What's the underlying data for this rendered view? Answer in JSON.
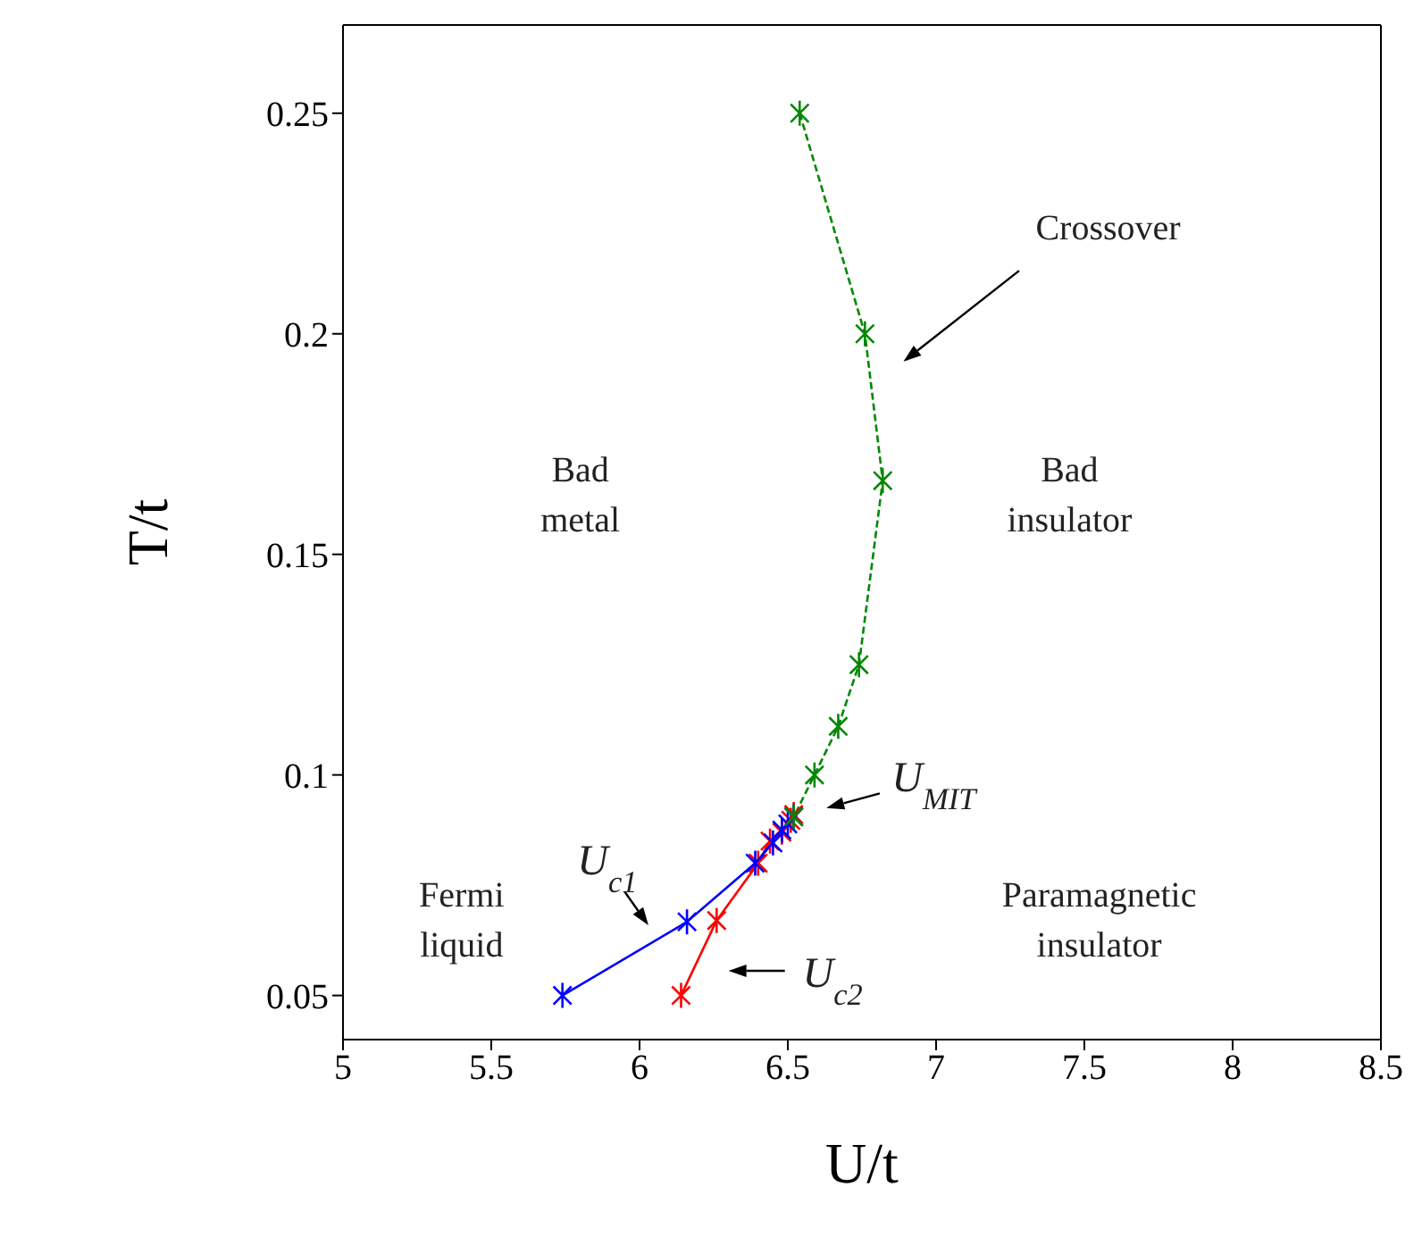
{
  "chart_data": {
    "type": "line",
    "xlabel": "U/t",
    "ylabel": "T/t",
    "xlim": [
      5,
      8.5
    ],
    "xticks": [
      5,
      5.5,
      6,
      6.5,
      7,
      7.5,
      8,
      8.5
    ],
    "ylim": [
      0.04,
      0.27
    ],
    "yticks": [
      0.05,
      0.1,
      0.15,
      0.2,
      0.25
    ],
    "series": [
      {
        "color": "#008800",
        "line_style": "dashed",
        "marker": "cross",
        "x": [
          6.54,
          6.76,
          6.82,
          6.74,
          6.67,
          6.59,
          6.52
        ],
        "values": [
          0.25,
          0.2,
          0.1667,
          0.125,
          0.111,
          0.1,
          0.0905
        ]
      },
      {
        "color": "#0000ff",
        "line_style": "solid",
        "marker": "cross",
        "x": [
          5.74,
          6.16,
          6.39,
          6.45,
          6.48,
          6.5,
          6.52
        ],
        "values": [
          0.05,
          0.0667,
          0.08,
          0.0846,
          0.0875,
          0.0889,
          0.0905
        ]
      },
      {
        "color": "#ff0000",
        "line_style": "solid",
        "marker": "cross",
        "x": [
          6.14,
          6.26,
          6.4,
          6.44,
          6.48,
          6.51,
          6.52
        ],
        "values": [
          0.05,
          0.067,
          0.08,
          0.085,
          0.087,
          0.0897,
          0.091
        ]
      }
    ],
    "annotations": [
      "Bad metal",
      "Bad insulator",
      "Fermi liquid",
      "Paramagnetic insulator",
      "Crossover",
      "U$_{MIT}$",
      "U$_{c1}$",
      "U$_{c2}$"
    ]
  }
}
